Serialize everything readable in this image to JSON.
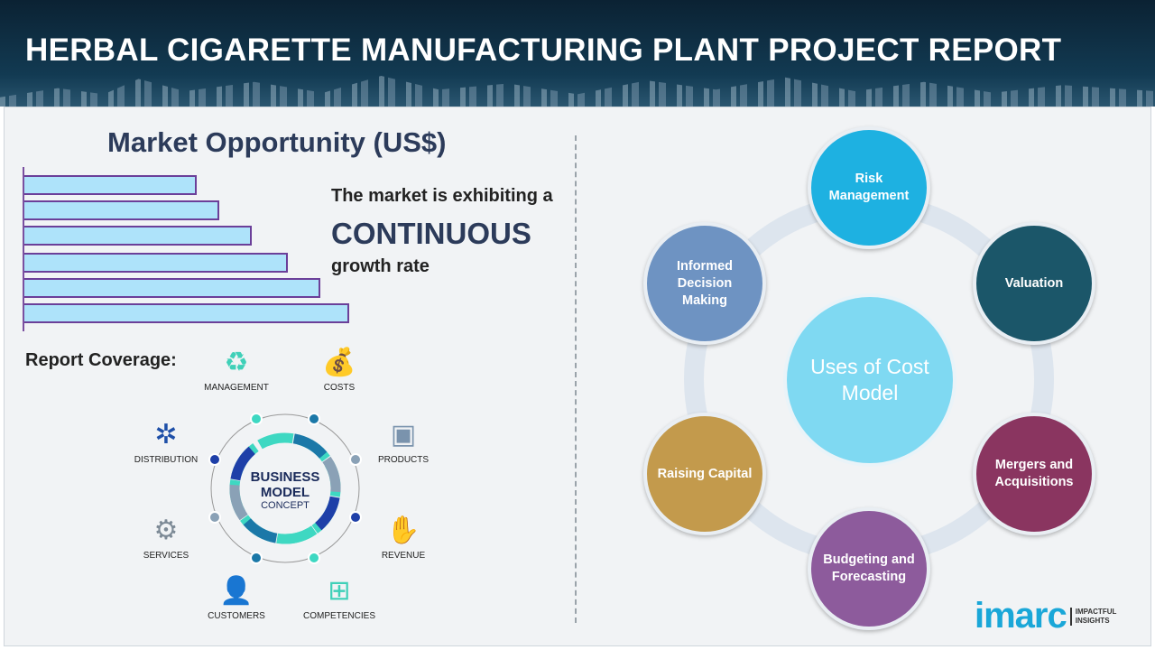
{
  "header": {
    "title": "HERBAL CIGARETTE MANUFACTURING PLANT PROJECT REPORT"
  },
  "market": {
    "title": "Market Opportunity (US$)",
    "line1": "The market is exhibiting a",
    "line2": "CONTINUOUS",
    "line3": "growth rate",
    "bar_levels": [
      53,
      60,
      70,
      81,
      91,
      100
    ]
  },
  "coverage": {
    "title": "Report Coverage:",
    "center_bold": "BUSINESS MODEL",
    "center_sub": "CONCEPT",
    "items": [
      {
        "label": "MANAGEMENT",
        "icon": "lightbulb-cycle-icon"
      },
      {
        "label": "COSTS",
        "icon": "money-bag-icon"
      },
      {
        "label": "DISTRIBUTION",
        "icon": "network-icon"
      },
      {
        "label": "PRODUCTS",
        "icon": "box-icon"
      },
      {
        "label": "SERVICES",
        "icon": "gears-icon"
      },
      {
        "label": "REVENUE",
        "icon": "hand-coins-icon"
      },
      {
        "label": "CUSTOMERS",
        "icon": "person-icon"
      },
      {
        "label": "COMPETENCIES",
        "icon": "hierarchy-icon"
      }
    ]
  },
  "uses": {
    "center": "Uses of Cost Model",
    "nodes": [
      {
        "label": "Risk Management",
        "color": "#1eb1e1"
      },
      {
        "label": "Valuation",
        "color": "#1b5669"
      },
      {
        "label": "Mergers and Acquisitions",
        "color": "#8a3560"
      },
      {
        "label": "Budgeting and Forecasting",
        "color": "#8d5b9c"
      },
      {
        "label": "Raising Capital",
        "color": "#c39a4c"
      },
      {
        "label": "Informed Decision Making",
        "color": "#6e93c2"
      }
    ]
  },
  "logo": {
    "name": "imarc",
    "tagline": "IMPACTFUL INSIGHTS"
  }
}
